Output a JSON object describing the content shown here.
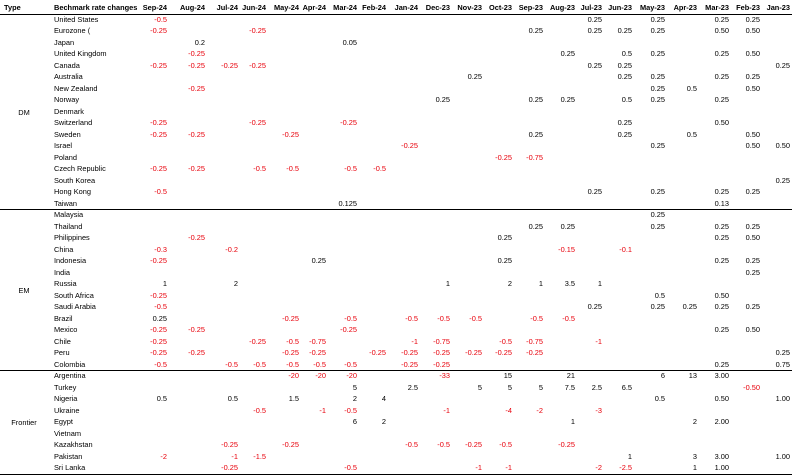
{
  "headers": [
    "Type",
    "Bechmark rate changes",
    "Sep-24",
    "Aug-24",
    "Jul-24",
    "Jun-24",
    "May-24",
    "Apr-24",
    "Mar-24",
    "Feb-24",
    "Jan-24",
    "Dec-23",
    "Nov-23",
    "Oct-23",
    "Sep-23",
    "Aug-23",
    "Jul-23",
    "Jun-23",
    "May-23",
    "Apr-23",
    "Mar-23",
    "Feb-23",
    "Jan-23"
  ],
  "groups": [
    {
      "type": "DM",
      "rows": [
        {
          "name": "United States",
          "values": [
            "-0.5",
            "",
            "",
            "",
            "",
            "",
            "",
            "",
            "",
            "",
            "",
            "",
            "",
            "",
            "0.25",
            "",
            "0.25",
            "",
            "0.25",
            "0.25",
            ""
          ]
        },
        {
          "name": "Eurozone (",
          "values": [
            "-0.25",
            "",
            "",
            "-0.25",
            "",
            "",
            "",
            "",
            "",
            "",
            "",
            "",
            "0.25",
            "",
            "0.25",
            "0.25",
            "0.25",
            "",
            "0.50",
            "0.50",
            ""
          ]
        },
        {
          "name": "Japan",
          "values": [
            "",
            "0.2",
            "",
            "",
            "",
            "",
            "0.05",
            "",
            "",
            "",
            "",
            "",
            "",
            "",
            "",
            "",
            "",
            "",
            "",
            "",
            ""
          ]
        },
        {
          "name": "United Kingdom",
          "values": [
            "",
            "-0.25",
            "",
            "",
            "",
            "",
            "",
            "",
            "",
            "",
            "",
            "",
            "",
            "0.25",
            "",
            "0.5",
            "0.25",
            "",
            "0.25",
            "0.50",
            ""
          ]
        },
        {
          "name": "Canada",
          "values": [
            "-0.25",
            "-0.25",
            "-0.25",
            "-0.25",
            "",
            "",
            "",
            "",
            "",
            "",
            "",
            "",
            "",
            "",
            "0.25",
            "0.25",
            "",
            "",
            "",
            "",
            "0.25"
          ]
        },
        {
          "name": "Australia",
          "values": [
            "",
            "",
            "",
            "",
            "",
            "",
            "",
            "",
            "",
            "",
            "0.25",
            "",
            "",
            "",
            "",
            "0.25",
            "0.25",
            "",
            "0.25",
            "0.25",
            ""
          ]
        },
        {
          "name": "New Zealand",
          "values": [
            "",
            "-0.25",
            "",
            "",
            "",
            "",
            "",
            "",
            "",
            "",
            "",
            "",
            "",
            "",
            "",
            "",
            "0.25",
            "0.5",
            "",
            "0.50",
            ""
          ]
        },
        {
          "name": "Norway",
          "values": [
            "",
            "",
            "",
            "",
            "",
            "",
            "",
            "",
            "",
            "0.25",
            "",
            "",
            "0.25",
            "0.25",
            "",
            "0.5",
            "0.25",
            "",
            "0.25",
            "",
            ""
          ]
        },
        {
          "name": "Denmark",
          "values": [
            "",
            "",
            "",
            "",
            "",
            "",
            "",
            "",
            "",
            "",
            "",
            "",
            "",
            "",
            "",
            "",
            "",
            "",
            "",
            "",
            ""
          ]
        },
        {
          "name": "Switzerland",
          "values": [
            "-0.25",
            "",
            "",
            "-0.25",
            "",
            "",
            "-0.25",
            "",
            "",
            "",
            "",
            "",
            "",
            "",
            "",
            "0.25",
            "",
            "",
            "0.50",
            "",
            ""
          ]
        },
        {
          "name": "Sweden",
          "values": [
            "-0.25",
            "-0.25",
            "",
            "",
            "-0.25",
            "",
            "",
            "",
            "",
            "",
            "",
            "",
            "0.25",
            "",
            "",
            "0.25",
            "",
            "0.5",
            "",
            "0.50",
            ""
          ]
        },
        {
          "name": "Israel",
          "values": [
            "",
            "",
            "",
            "",
            "",
            "",
            "",
            "",
            "-0.25",
            "",
            "",
            "",
            "",
            "",
            "",
            "",
            "0.25",
            "",
            "",
            "0.50",
            "0.50"
          ]
        },
        {
          "name": "Poland",
          "values": [
            "",
            "",
            "",
            "",
            "",
            "",
            "",
            "",
            "",
            "",
            "",
            "-0.25",
            "-0.75",
            "",
            "",
            "",
            "",
            "",
            "",
            "",
            ""
          ]
        },
        {
          "name": "Czech Republic",
          "values": [
            "-0.25",
            "-0.25",
            "",
            "-0.5",
            "-0.5",
            "",
            "-0.5",
            "-0.5",
            "",
            "",
            "",
            "",
            "",
            "",
            "",
            "",
            "",
            "",
            "",
            "",
            ""
          ]
        },
        {
          "name": "South Korea",
          "values": [
            "",
            "",
            "",
            "",
            "",
            "",
            "",
            "",
            "",
            "",
            "",
            "",
            "",
            "",
            "",
            "",
            "",
            "",
            "",
            "",
            "0.25"
          ]
        },
        {
          "name": "Hong Kong",
          "values": [
            "-0.5",
            "",
            "",
            "",
            "",
            "",
            "",
            "",
            "",
            "",
            "",
            "",
            "",
            "",
            "0.25",
            "",
            "0.25",
            "",
            "0.25",
            "0.25",
            ""
          ]
        },
        {
          "name": "Taiwan",
          "values": [
            "",
            "",
            "",
            "",
            "",
            "",
            "0.125",
            "",
            "",
            "",
            "",
            "",
            "",
            "",
            "",
            "",
            "",
            "",
            "0.13",
            "",
            ""
          ]
        }
      ]
    },
    {
      "type": "EM",
      "rows": [
        {
          "name": "Malaysia",
          "values": [
            "",
            "",
            "",
            "",
            "",
            "",
            "",
            "",
            "",
            "",
            "",
            "",
            "",
            "",
            "",
            "",
            "0.25",
            "",
            "",
            "",
            ""
          ]
        },
        {
          "name": "Thailand",
          "values": [
            "",
            "",
            "",
            "",
            "",
            "",
            "",
            "",
            "",
            "",
            "",
            "",
            "0.25",
            "0.25",
            "",
            "",
            "0.25",
            "",
            "0.25",
            "0.25",
            ""
          ]
        },
        {
          "name": "Philippines",
          "values": [
            "",
            "-0.25",
            "",
            "",
            "",
            "",
            "",
            "",
            "",
            "",
            "",
            "0.25",
            "",
            "",
            "",
            "",
            "",
            "",
            "0.25",
            "0.50",
            ""
          ]
        },
        {
          "name": "China",
          "values": [
            "-0.3",
            "",
            "-0.2",
            "",
            "",
            "",
            "",
            "",
            "",
            "",
            "",
            "",
            "",
            "-0.15",
            "",
            "-0.1",
            "",
            "",
            "",
            "",
            ""
          ]
        },
        {
          "name": "Indonesia",
          "values": [
            "-0.25",
            "",
            "",
            "",
            "",
            "0.25",
            "",
            "",
            "",
            "",
            "",
            "0.25",
            "",
            "",
            "",
            "",
            "",
            "",
            "0.25",
            "0.25",
            ""
          ]
        },
        {
          "name": "India",
          "values": [
            "",
            "",
            "",
            "",
            "",
            "",
            "",
            "",
            "",
            "",
            "",
            "",
            "",
            "",
            "",
            "",
            "",
            "",
            "",
            "0.25",
            ""
          ]
        },
        {
          "name": "Russia",
          "values": [
            "1",
            "",
            "2",
            "",
            "",
            "",
            "",
            "",
            "",
            "1",
            "",
            "2",
            "1",
            "3.5",
            "1",
            "",
            "",
            "",
            "",
            "",
            ""
          ]
        },
        {
          "name": "South Africa",
          "values": [
            "-0.25",
            "",
            "",
            "",
            "",
            "",
            "",
            "",
            "",
            "",
            "",
            "",
            "",
            "",
            "",
            "",
            "0.5",
            "",
            "0.50",
            "",
            ""
          ]
        },
        {
          "name": "Saudi Arabia",
          "values": [
            "-0.5",
            "",
            "",
            "",
            "",
            "",
            "",
            "",
            "",
            "",
            "",
            "",
            "",
            "",
            "0.25",
            "",
            "0.25",
            "0.25",
            "0.25",
            "0.25",
            ""
          ]
        },
        {
          "name": "Brazil",
          "values": [
            "0.25",
            "",
            "",
            "",
            "-0.25",
            "",
            "-0.5",
            "",
            "-0.5",
            "-0.5",
            "-0.5",
            "",
            "-0.5",
            "-0.5",
            "",
            "",
            "",
            "",
            "",
            "",
            ""
          ]
        },
        {
          "name": "Mexico",
          "values": [
            "-0.25",
            "-0.25",
            "",
            "",
            "",
            "",
            "-0.25",
            "",
            "",
            "",
            "",
            "",
            "",
            "",
            "",
            "",
            "",
            "",
            "0.25",
            "0.50",
            ""
          ]
        },
        {
          "name": "Chile",
          "values": [
            "-0.25",
            "",
            "",
            "-0.25",
            "-0.5",
            "-0.75",
            "",
            "",
            "-1",
            "-0.75",
            "",
            "-0.5",
            "-0.75",
            "",
            "-1",
            "",
            "",
            "",
            "",
            "",
            ""
          ]
        },
        {
          "name": "Peru",
          "values": [
            "-0.25",
            "-0.25",
            "",
            "",
            "-0.25",
            "-0.25",
            "",
            "-0.25",
            "-0.25",
            "-0.25",
            "-0.25",
            "-0.25",
            "-0.25",
            "",
            "",
            "",
            "",
            "",
            "",
            "",
            "0.25"
          ]
        },
        {
          "name": "Colombia",
          "values": [
            "-0.5",
            "",
            "-0.5",
            "-0.5",
            "-0.5",
            "-0.5",
            "-0.5",
            "",
            "-0.25",
            "-0.25",
            "",
            "",
            "",
            "",
            "",
            "",
            "",
            "",
            "0.25",
            "",
            "0.75"
          ]
        }
      ]
    },
    {
      "type": "Frontier",
      "rows": [
        {
          "name": "Argentina",
          "values": [
            "",
            "",
            "",
            "",
            "-20",
            "-20",
            "-20",
            "",
            "",
            "-33",
            "",
            "15",
            "",
            "21",
            "",
            "",
            "6",
            "13",
            "3.00",
            "",
            ""
          ]
        },
        {
          "name": "Turkey",
          "values": [
            "",
            "",
            "",
            "",
            "",
            "",
            "5",
            "",
            "2.5",
            "",
            "5",
            "5",
            "5",
            "7.5",
            "2.5",
            "6.5",
            "",
            "",
            "",
            "-0.50",
            ""
          ]
        },
        {
          "name": "Nigeria",
          "values": [
            "0.5",
            "",
            "0.5",
            "",
            "1.5",
            "",
            "2",
            "4",
            "",
            "",
            "",
            "",
            "",
            "",
            "",
            "",
            "0.5",
            "",
            "0.50",
            "",
            "1.00"
          ]
        },
        {
          "name": "Ukraine",
          "values": [
            "",
            "",
            "",
            "-0.5",
            "",
            "-1",
            "-0.5",
            "",
            "",
            "-1",
            "",
            "-4",
            "-2",
            "",
            "-3",
            "",
            "",
            "",
            "",
            "",
            ""
          ]
        },
        {
          "name": "Egypt",
          "values": [
            "",
            "",
            "",
            "",
            "",
            "",
            "6",
            "2",
            "",
            "",
            "",
            "",
            "",
            "1",
            "",
            "",
            "",
            "2",
            "2.00",
            "",
            ""
          ]
        },
        {
          "name": "Vietnam",
          "values": [
            "",
            "",
            "",
            "",
            "",
            "",
            "",
            "",
            "",
            "",
            "",
            "",
            "",
            "",
            "",
            "",
            "",
            "",
            "",
            "",
            ""
          ]
        },
        {
          "name": "Kazakhstan",
          "values": [
            "",
            "",
            "-0.25",
            "",
            "-0.25",
            "",
            "",
            "",
            "-0.5",
            "-0.5",
            "-0.25",
            "-0.5",
            "",
            "-0.25",
            "",
            "",
            "",
            "",
            "",
            "",
            ""
          ]
        },
        {
          "name": "Pakistan",
          "values": [
            "-2",
            "",
            "-1",
            "-1.5",
            "",
            "",
            "",
            "",
            "",
            "",
            "",
            "",
            "",
            "",
            "",
            "1",
            "",
            "3",
            "3.00",
            "",
            "1.00"
          ]
        },
        {
          "name": "Sri Lanka",
          "values": [
            "",
            "",
            "-0.25",
            "",
            "",
            "",
            "-0.5",
            "",
            "",
            "",
            "-1",
            "-1",
            "",
            "",
            "-2",
            "-2.5",
            "",
            "1",
            "1.00",
            "",
            ""
          ]
        }
      ]
    }
  ]
}
